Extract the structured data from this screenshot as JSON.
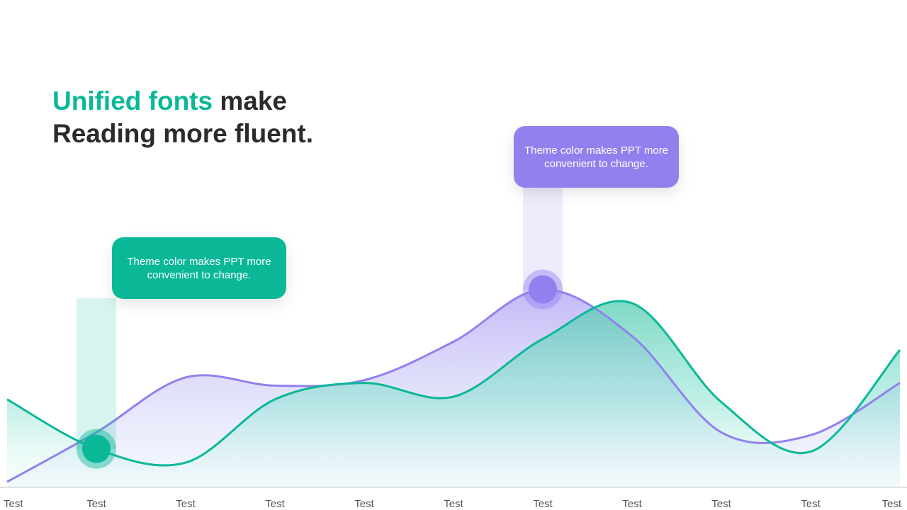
{
  "headline": {
    "accent_text": "Unified fonts",
    "rest_line1": " make",
    "line2": "Reading more fluent."
  },
  "callouts": {
    "green": {
      "text": "Theme color makes PPT more convenient to change."
    },
    "purple": {
      "text": "Theme color makes PPT more convenient to change."
    }
  },
  "colors": {
    "accent_green": "#0ab898",
    "accent_purple": "#9181ef",
    "headline": "#2b2b2b"
  },
  "chart_data": {
    "type": "area",
    "categories": [
      "Test",
      "Test",
      "Test",
      "Test",
      "Test",
      "Test",
      "Test",
      "Test",
      "Test",
      "Test",
      "Test"
    ],
    "ylim": [
      0,
      100
    ],
    "series": [
      {
        "color": "#0ab898",
        "values": [
          32,
          14,
          9,
          32,
          38,
          33,
          54,
          67,
          31,
          13,
          50
        ]
      },
      {
        "color": "#9181ef",
        "values": [
          2,
          20,
          40,
          37,
          39,
          53,
          72,
          55,
          20,
          19,
          38
        ]
      }
    ],
    "highlights": [
      {
        "series": 0,
        "index": 1
      },
      {
        "series": 1,
        "index": 6
      }
    ],
    "grid": false,
    "legend": "none"
  }
}
